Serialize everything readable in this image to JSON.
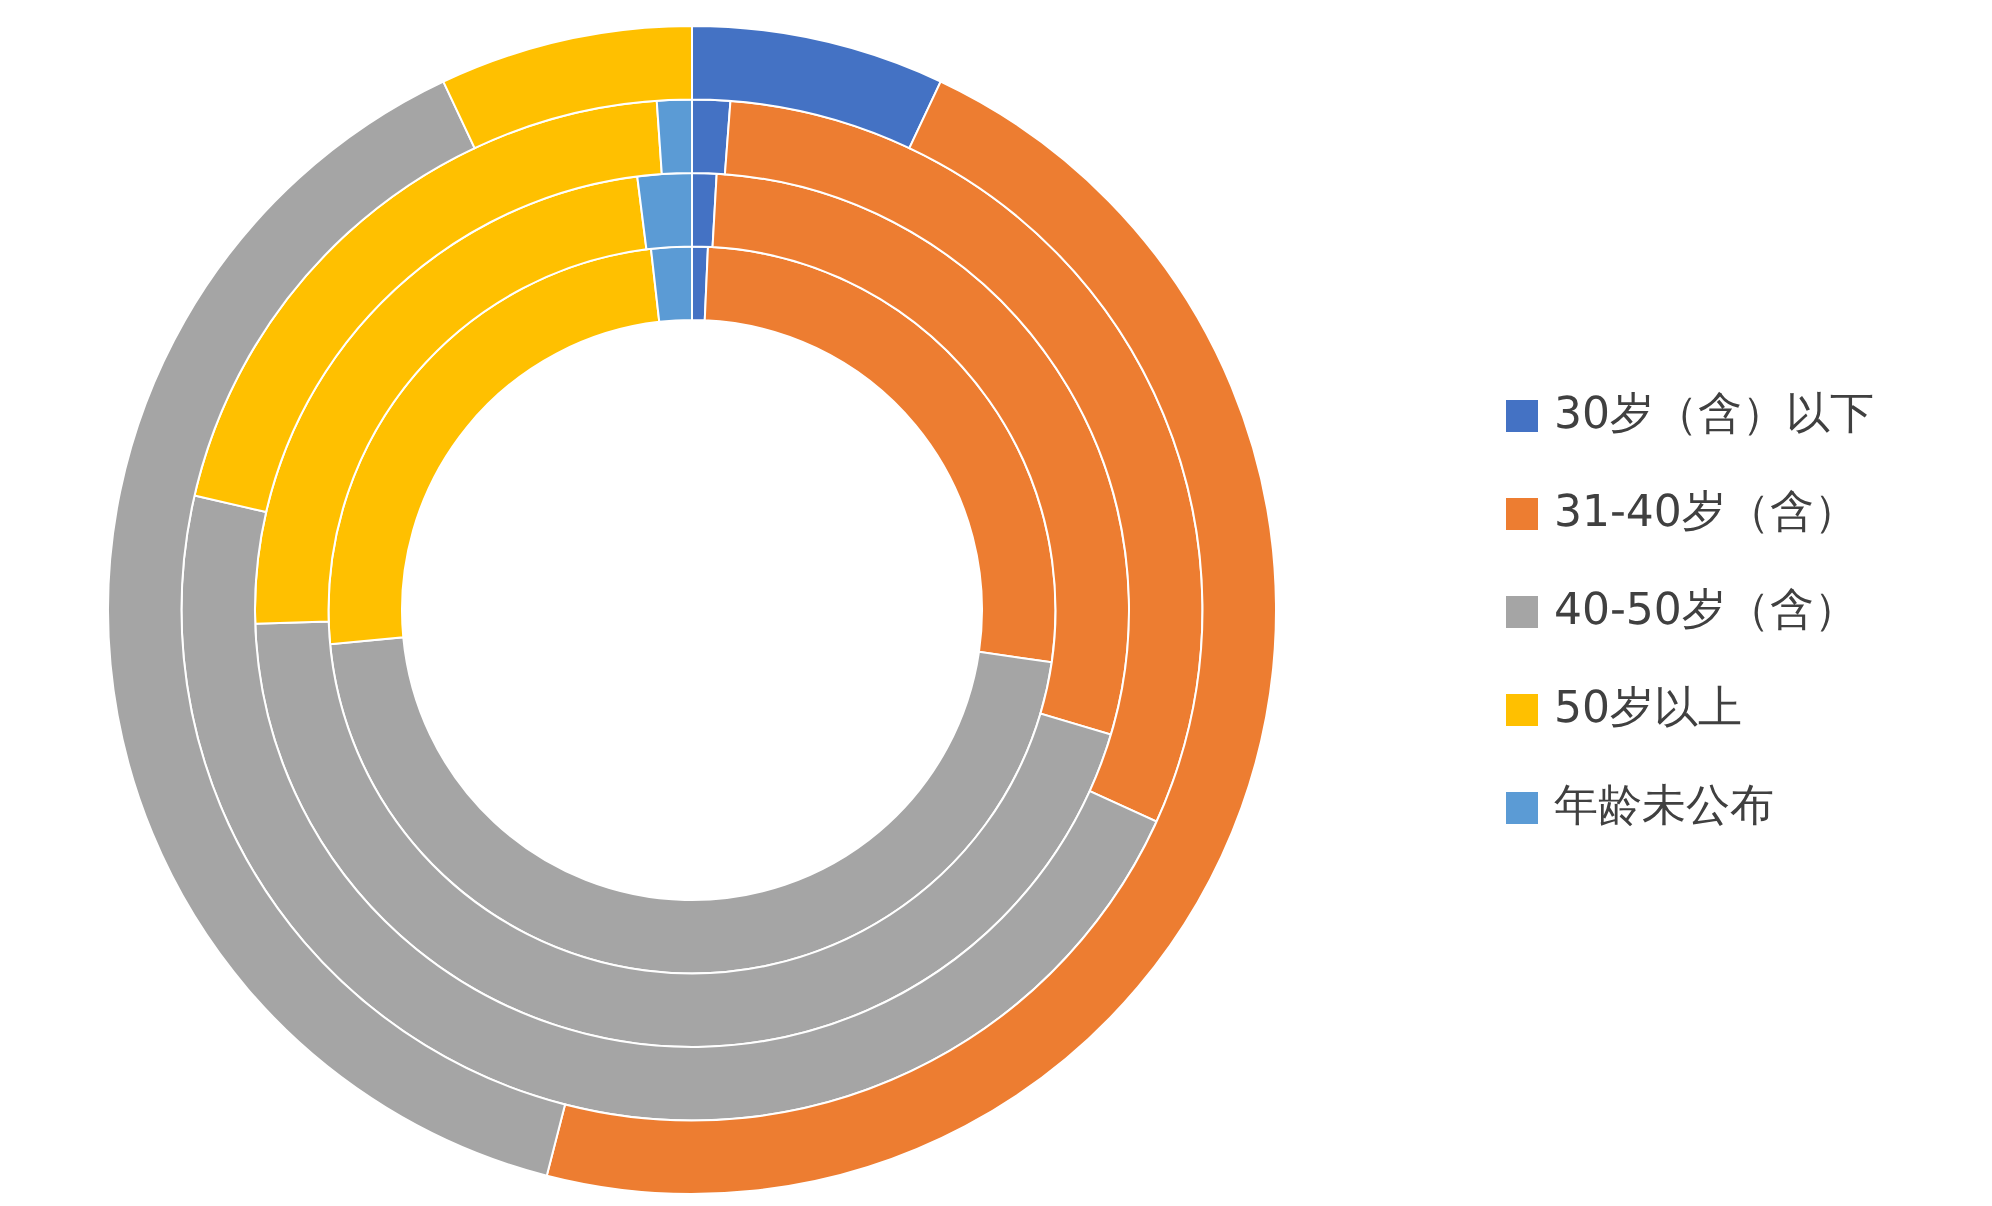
{
  "chart_data": {
    "type": "donut",
    "categories": [
      "30岁（含）以下",
      "31-40岁（含）",
      "40-50岁（含）",
      "50岁以上",
      "年龄未公布"
    ],
    "colors": [
      "#4472c4",
      "#ed7d31",
      "#a5a5a5",
      "#ffc000",
      "#5b9bd5"
    ],
    "series": [
      {
        "values": [
          0.7,
          26.6,
          46.2,
          24.7,
          1.8
        ]
      },
      {
        "values": [
          0.9,
          28.7,
          44.9,
          23.5,
          2.0
        ]
      },
      {
        "values": [
          1.2,
          30.6,
          46.8,
          20.3,
          1.1
        ]
      },
      {
        "values": [
          7,
          47,
          39,
          7,
          0
        ]
      }
    ],
    "legend": "right"
  }
}
